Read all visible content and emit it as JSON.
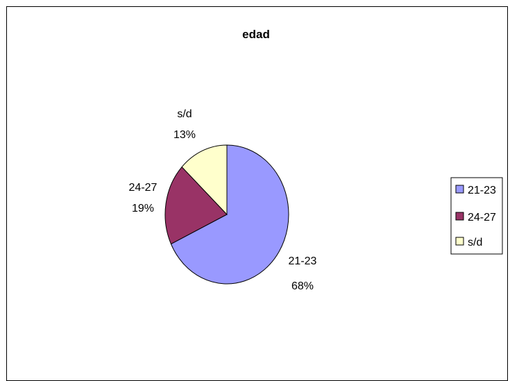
{
  "chart_data": {
    "type": "pie",
    "title": "edad",
    "slices": [
      {
        "label": "21-23",
        "value": 68,
        "display": "68%",
        "color": "#9999ff"
      },
      {
        "label": "24-27",
        "value": 19,
        "display": "19%",
        "color": "#993366"
      },
      {
        "label": "s/d",
        "value": 13,
        "display": "13%",
        "color": "#ffffcc"
      }
    ],
    "legend_position": "right",
    "start_angle": "12 o'clock, clockwise"
  }
}
